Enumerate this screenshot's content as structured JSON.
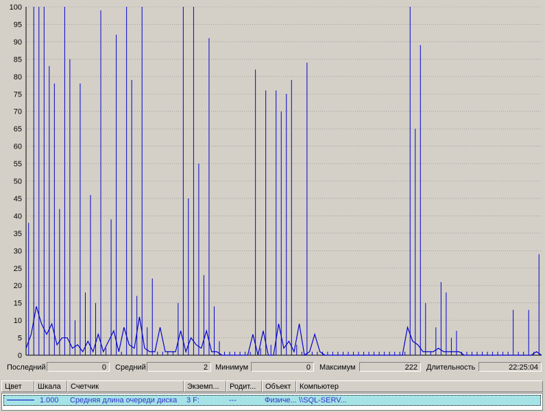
{
  "colors": {
    "background": "#d4d0c8",
    "series": "#0000cc",
    "grid": "#808080",
    "selection": "#a6e3e6"
  },
  "chart_data": {
    "type": "line",
    "title": "",
    "xlabel": "",
    "ylabel": "",
    "ylim": [
      0,
      100
    ],
    "yticks": [
      "0",
      "5",
      "10",
      "15",
      "20",
      "25",
      "30",
      "35",
      "40",
      "45",
      "50",
      "55",
      "60",
      "65",
      "70",
      "75",
      "80",
      "85",
      "90",
      "95",
      "100"
    ],
    "grid": true,
    "series": [
      {
        "name": "Средняя длина очереди диска",
        "kind": "spikes",
        "x": [
          0.5,
          1.5,
          2.5,
          3.5,
          4.5,
          5.5,
          6.5,
          7.5,
          8.5,
          9.5,
          10.5,
          11.5,
          12.5,
          13.5,
          14.5,
          15.5,
          16.5,
          17.5,
          18.5,
          19.5,
          20.5,
          21.5,
          22.5,
          23.5,
          24.5,
          25.5,
          26.5,
          27.5,
          28.5,
          29.5,
          30.5,
          31.5,
          32.5,
          33.5,
          34.5,
          35.5,
          36.5,
          37.5,
          38.5,
          39.5,
          40.5,
          41.5,
          42.5,
          43.5,
          44.5,
          45.5,
          46.5,
          47.5,
          48.5,
          49.5,
          50.5,
          51.5,
          52.5,
          53.5,
          54.5,
          55.5,
          56.5,
          57.5,
          58.5,
          59.5,
          60.5,
          61.5,
          62.5,
          63.5,
          64.5,
          65.5,
          66.5,
          67.5,
          68.5,
          69.5,
          70.5,
          71.5,
          72.5,
          73.5,
          74.5,
          75.5,
          76.5,
          77.5,
          78.5,
          79.5,
          80.5,
          81.5,
          82.5,
          83.5,
          84.5,
          85.5,
          86.5,
          87.5,
          88.5,
          89.5,
          90.5,
          91.5,
          92.5,
          93.5,
          94.5,
          95.5,
          96.5,
          97.5,
          98.5,
          99.5
        ],
        "values": [
          38,
          100,
          100,
          100,
          83,
          78,
          42,
          100,
          85,
          10,
          78,
          18,
          46,
          15,
          99,
          2,
          39,
          92,
          1,
          100,
          79,
          17,
          100,
          8,
          22,
          1,
          1,
          1,
          1,
          15,
          100,
          45,
          100,
          55,
          23,
          91,
          14,
          4,
          1,
          1,
          1,
          1,
          1,
          1,
          82,
          2,
          76,
          3,
          76,
          70,
          75,
          79,
          3,
          1,
          84,
          1,
          1,
          1,
          1,
          1,
          1,
          1,
          1,
          1,
          1,
          1,
          1,
          1,
          1,
          1,
          1,
          1,
          1,
          1,
          100,
          65,
          89,
          15,
          1,
          8,
          21,
          18,
          5,
          7,
          1,
          1,
          1,
          1,
          1,
          1,
          1,
          1,
          1,
          1,
          13,
          1,
          1,
          13,
          1,
          29
        ]
      },
      {
        "name": "Средняя длина очереди диска (среднее)",
        "kind": "polyline",
        "x": [
          0,
          1,
          2,
          3,
          4,
          5,
          6,
          7,
          8,
          9,
          10,
          11,
          12,
          13,
          14,
          15,
          16,
          17,
          18,
          19,
          20,
          21,
          22,
          23,
          24,
          25,
          26,
          27,
          28,
          29,
          30,
          31,
          32,
          33,
          34,
          35,
          36,
          37,
          38,
          39,
          40,
          41,
          42,
          43,
          44,
          45,
          46,
          47,
          48,
          49,
          50,
          51,
          52,
          53,
          54,
          55,
          56,
          57,
          58,
          59,
          60,
          61,
          62,
          63,
          64,
          65,
          66,
          67,
          68,
          69,
          70,
          71,
          72,
          73,
          74,
          75,
          76,
          77,
          78,
          79,
          80,
          81,
          82,
          83,
          84,
          85,
          86,
          87,
          88,
          89,
          90,
          91,
          92,
          93,
          94,
          95,
          96,
          97,
          98,
          99,
          100
        ],
        "values": [
          2,
          6,
          14,
          9,
          6,
          9,
          3,
          5,
          5,
          2,
          3,
          1,
          4,
          1,
          6,
          1,
          4,
          7,
          1,
          8,
          3,
          2,
          11,
          2,
          1,
          1,
          8,
          1,
          1,
          1,
          7,
          1,
          5,
          3,
          2,
          7,
          1,
          1,
          0,
          0,
          0,
          0,
          0,
          0,
          6,
          0,
          7,
          0,
          0,
          9,
          2,
          4,
          1,
          9,
          0,
          1,
          6,
          1,
          0,
          0,
          0,
          0,
          0,
          0,
          0,
          0,
          0,
          0,
          0,
          0,
          0,
          0,
          0,
          0,
          8,
          4,
          3,
          1,
          1,
          1,
          2,
          1,
          1,
          1,
          1,
          0,
          0,
          0,
          0,
          0,
          0,
          0,
          0,
          0,
          0,
          0,
          0,
          0,
          0,
          1,
          0
        ]
      }
    ]
  },
  "stats": {
    "last_label": "Последний",
    "last_value": "0",
    "avg_label": "Средний",
    "avg_value": "2",
    "min_label": "Минимум",
    "min_value": "0",
    "max_label": "Максимум",
    "max_value": "222",
    "duration_label": "Длительность",
    "duration_value": "22:25:04"
  },
  "legend": {
    "headers": {
      "color": "Цвет",
      "scale": "Шкала",
      "counter": "Счетчик",
      "instance": "Экземп...",
      "parent": "Родит...",
      "object": "Объект",
      "computer": "Компьютер"
    },
    "row": {
      "scale": "1.000",
      "counter": "Средняя длина очереди диска",
      "instance": "3 F:",
      "parent": "---",
      "object": "Физиче...",
      "computer": "\\\\SQL-SERV..."
    }
  }
}
